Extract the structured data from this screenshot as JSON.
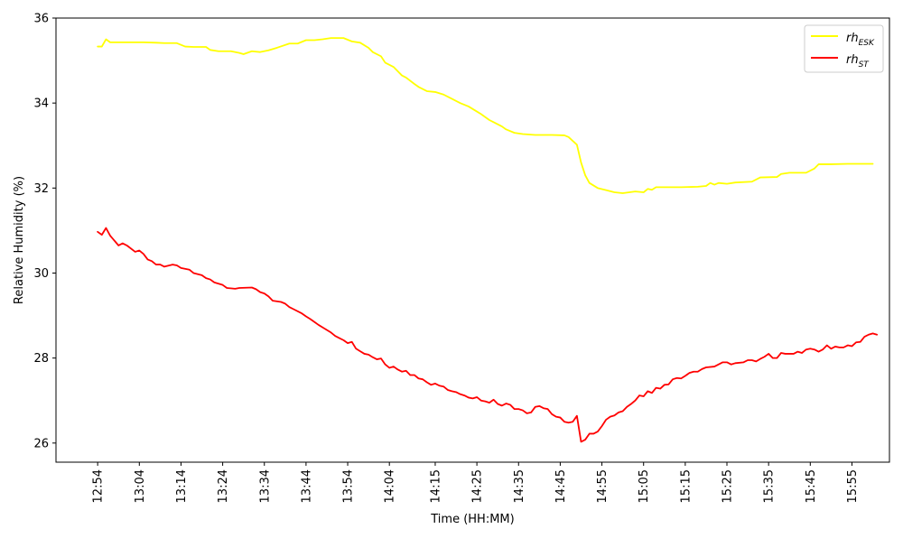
{
  "chart_data": {
    "type": "line",
    "xlabel": "Time (HH:MM)",
    "ylabel": "Relative Humidity (%)",
    "xlim": [
      "12:44",
      "16:04"
    ],
    "ylim": [
      25.55,
      36.0
    ],
    "y_ticks": [
      "26",
      "28",
      "30",
      "32",
      "34",
      "36"
    ],
    "x_ticks": [
      "12:54",
      "13:04",
      "13:14",
      "13:24",
      "13:34",
      "13:44",
      "13:54",
      "14:04",
      "14:15",
      "14:25",
      "14:35",
      "14:45",
      "14:55",
      "15:05",
      "15:15",
      "15:25",
      "15:35",
      "15:45",
      "15:55"
    ],
    "grid": false,
    "legend_position": "top-right",
    "series": [
      {
        "name_main": "rh",
        "name_sub": "ESK",
        "color": "#ffff00",
        "points": [
          [
            "12:54",
            35.33
          ],
          [
            "12:55",
            35.33
          ],
          [
            "12:56",
            35.5
          ],
          [
            "12:57",
            35.43
          ],
          [
            "12:59",
            35.43
          ],
          [
            "13:02",
            35.43
          ],
          [
            "13:05",
            35.43
          ],
          [
            "13:08",
            35.42
          ],
          [
            "13:10",
            35.41
          ],
          [
            "13:13",
            35.41
          ],
          [
            "13:15",
            35.33
          ],
          [
            "13:17",
            35.32
          ],
          [
            "13:20",
            35.32
          ],
          [
            "13:21",
            35.25
          ],
          [
            "13:23",
            35.22
          ],
          [
            "13:26",
            35.22
          ],
          [
            "13:28",
            35.18
          ],
          [
            "13:29",
            35.15
          ],
          [
            "13:31",
            35.22
          ],
          [
            "13:33",
            35.2
          ],
          [
            "13:35",
            35.24
          ],
          [
            "13:37",
            35.3
          ],
          [
            "13:40",
            35.4
          ],
          [
            "13:42",
            35.4
          ],
          [
            "13:44",
            35.48
          ],
          [
            "13:46",
            35.48
          ],
          [
            "13:48",
            35.5
          ],
          [
            "13:50",
            35.53
          ],
          [
            "13:53",
            35.53
          ],
          [
            "13:55",
            35.45
          ],
          [
            "13:57",
            35.42
          ],
          [
            "13:59",
            35.3
          ],
          [
            "14:00",
            35.2
          ],
          [
            "14:02",
            35.1
          ],
          [
            "14:03",
            34.95
          ],
          [
            "14:05",
            34.85
          ],
          [
            "14:07",
            34.65
          ],
          [
            "14:08",
            34.6
          ],
          [
            "14:10",
            34.45
          ],
          [
            "14:11",
            34.38
          ],
          [
            "14:13",
            34.28
          ],
          [
            "14:15",
            34.26
          ],
          [
            "14:17",
            34.2
          ],
          [
            "14:19",
            34.1
          ],
          [
            "14:21",
            34.0
          ],
          [
            "14:23",
            33.92
          ],
          [
            "14:25",
            33.8
          ],
          [
            "14:26",
            33.74
          ],
          [
            "14:28",
            33.6
          ],
          [
            "14:29",
            33.55
          ],
          [
            "14:31",
            33.45
          ],
          [
            "14:32",
            33.38
          ],
          [
            "14:34",
            33.3
          ],
          [
            "14:36",
            33.27
          ],
          [
            "14:39",
            33.25
          ],
          [
            "14:43",
            33.25
          ],
          [
            "14:46",
            33.24
          ],
          [
            "14:47",
            33.2
          ],
          [
            "14:49",
            33.02
          ],
          [
            "14:50",
            32.6
          ],
          [
            "14:51",
            32.3
          ],
          [
            "14:52",
            32.12
          ],
          [
            "14:54",
            32.0
          ],
          [
            "14:56",
            31.95
          ],
          [
            "14:58",
            31.9
          ],
          [
            "15:00",
            31.88
          ],
          [
            "15:03",
            31.92
          ],
          [
            "15:05",
            31.9
          ],
          [
            "15:06",
            31.98
          ],
          [
            "15:07",
            31.96
          ],
          [
            "15:08",
            32.02
          ],
          [
            "15:10",
            32.02
          ],
          [
            "15:14",
            32.02
          ],
          [
            "15:18",
            32.03
          ],
          [
            "15:20",
            32.05
          ],
          [
            "15:21",
            32.12
          ],
          [
            "15:22",
            32.08
          ],
          [
            "15:23",
            32.12
          ],
          [
            "15:25",
            32.1
          ],
          [
            "15:27",
            32.13
          ],
          [
            "15:31",
            32.15
          ],
          [
            "15:33",
            32.25
          ],
          [
            "15:37",
            32.26
          ],
          [
            "15:38",
            32.33
          ],
          [
            "15:40",
            32.36
          ],
          [
            "15:44",
            32.36
          ],
          [
            "15:46",
            32.46
          ],
          [
            "15:47",
            32.56
          ],
          [
            "15:50",
            32.56
          ],
          [
            "15:54",
            32.57
          ],
          [
            "15:59",
            32.57
          ],
          [
            "16:00",
            32.57
          ]
        ]
      },
      {
        "name_main": "rh",
        "name_sub": "ST",
        "color": "#ff0000",
        "points": [
          [
            "12:54",
            30.97
          ],
          [
            "12:55",
            30.9
          ],
          [
            "12:56",
            31.06
          ],
          [
            "12:57",
            30.88
          ],
          [
            "12:59",
            30.65
          ],
          [
            "13:00",
            30.7
          ],
          [
            "13:01",
            30.65
          ],
          [
            "13:03",
            30.5
          ],
          [
            "13:04",
            30.53
          ],
          [
            "13:05",
            30.45
          ],
          [
            "13:06",
            30.32
          ],
          [
            "13:07",
            30.28
          ],
          [
            "13:08",
            30.2
          ],
          [
            "13:09",
            30.2
          ],
          [
            "13:10",
            30.15
          ],
          [
            "13:12",
            30.2
          ],
          [
            "13:13",
            30.18
          ],
          [
            "13:14",
            30.12
          ],
          [
            "13:16",
            30.08
          ],
          [
            "13:17",
            30.0
          ],
          [
            "13:19",
            29.95
          ],
          [
            "13:20",
            29.88
          ],
          [
            "13:21",
            29.85
          ],
          [
            "13:22",
            29.78
          ],
          [
            "13:24",
            29.72
          ],
          [
            "13:25",
            29.65
          ],
          [
            "13:27",
            29.63
          ],
          [
            "13:28",
            29.65
          ],
          [
            "13:31",
            29.66
          ],
          [
            "13:32",
            29.62
          ],
          [
            "13:33",
            29.55
          ],
          [
            "13:34",
            29.52
          ],
          [
            "13:35",
            29.45
          ],
          [
            "13:36",
            29.35
          ],
          [
            "13:38",
            29.32
          ],
          [
            "13:39",
            29.28
          ],
          [
            "13:40",
            29.2
          ],
          [
            "13:41",
            29.15
          ],
          [
            "13:43",
            29.05
          ],
          [
            "13:44",
            28.98
          ],
          [
            "13:45",
            28.92
          ],
          [
            "13:46",
            28.85
          ],
          [
            "13:47",
            28.78
          ],
          [
            "13:48",
            28.72
          ],
          [
            "13:50",
            28.6
          ],
          [
            "13:51",
            28.52
          ],
          [
            "13:52",
            28.47
          ],
          [
            "13:53",
            28.42
          ],
          [
            "13:54",
            28.35
          ],
          [
            "13:55",
            28.38
          ],
          [
            "13:56",
            28.22
          ],
          [
            "13:57",
            28.16
          ],
          [
            "13:58",
            28.1
          ],
          [
            "13:59",
            28.08
          ],
          [
            "14:00",
            28.02
          ],
          [
            "14:01",
            27.97
          ],
          [
            "14:02",
            27.99
          ],
          [
            "14:03",
            27.85
          ],
          [
            "14:04",
            27.77
          ],
          [
            "14:05",
            27.8
          ],
          [
            "14:06",
            27.73
          ],
          [
            "14:07",
            27.68
          ],
          [
            "14:08",
            27.7
          ],
          [
            "14:09",
            27.6
          ],
          [
            "14:10",
            27.6
          ],
          [
            "14:11",
            27.52
          ],
          [
            "14:12",
            27.5
          ],
          [
            "14:13",
            27.43
          ],
          [
            "14:14",
            27.37
          ],
          [
            "14:15",
            27.4
          ],
          [
            "14:16",
            27.35
          ],
          [
            "14:17",
            27.33
          ],
          [
            "14:18",
            27.25
          ],
          [
            "14:19",
            27.22
          ],
          [
            "14:20",
            27.2
          ],
          [
            "14:21",
            27.15
          ],
          [
            "14:22",
            27.12
          ],
          [
            "14:23",
            27.07
          ],
          [
            "14:24",
            27.05
          ],
          [
            "14:25",
            27.08
          ],
          [
            "14:26",
            27.0
          ],
          [
            "14:27",
            26.98
          ],
          [
            "14:28",
            26.95
          ],
          [
            "14:29",
            27.02
          ],
          [
            "14:30",
            26.92
          ],
          [
            "14:31",
            26.88
          ],
          [
            "14:32",
            26.93
          ],
          [
            "14:33",
            26.9
          ],
          [
            "14:34",
            26.8
          ],
          [
            "14:35",
            26.8
          ],
          [
            "14:36",
            26.77
          ],
          [
            "14:37",
            26.7
          ],
          [
            "14:38",
            26.72
          ],
          [
            "14:39",
            26.85
          ],
          [
            "14:40",
            26.87
          ],
          [
            "14:41",
            26.82
          ],
          [
            "14:42",
            26.8
          ],
          [
            "14:43",
            26.68
          ],
          [
            "14:44",
            26.62
          ],
          [
            "14:45",
            26.6
          ],
          [
            "14:46",
            26.5
          ],
          [
            "14:47",
            26.48
          ],
          [
            "14:48",
            26.5
          ],
          [
            "14:49",
            26.64
          ],
          [
            "14:50",
            26.03
          ],
          [
            "14:51",
            26.08
          ],
          [
            "14:52",
            26.22
          ],
          [
            "14:53",
            26.22
          ],
          [
            "14:54",
            26.27
          ],
          [
            "14:55",
            26.4
          ],
          [
            "14:56",
            26.55
          ],
          [
            "14:57",
            26.62
          ],
          [
            "14:58",
            26.65
          ],
          [
            "14:59",
            26.72
          ],
          [
            "15:00",
            26.75
          ],
          [
            "15:01",
            26.85
          ],
          [
            "15:02",
            26.92
          ],
          [
            "15:03",
            27.0
          ],
          [
            "15:04",
            27.12
          ],
          [
            "15:05",
            27.1
          ],
          [
            "15:06",
            27.22
          ],
          [
            "15:07",
            27.18
          ],
          [
            "15:08",
            27.3
          ],
          [
            "15:09",
            27.28
          ],
          [
            "15:10",
            27.37
          ],
          [
            "15:11",
            27.38
          ],
          [
            "15:12",
            27.5
          ],
          [
            "15:13",
            27.53
          ],
          [
            "15:14",
            27.52
          ],
          [
            "15:15",
            27.58
          ],
          [
            "15:16",
            27.65
          ],
          [
            "15:17",
            27.68
          ],
          [
            "15:18",
            27.68
          ],
          [
            "15:19",
            27.74
          ],
          [
            "15:20",
            27.78
          ],
          [
            "15:22",
            27.8
          ],
          [
            "15:23",
            27.85
          ],
          [
            "15:24",
            27.9
          ],
          [
            "15:25",
            27.9
          ],
          [
            "15:26",
            27.85
          ],
          [
            "15:27",
            27.88
          ],
          [
            "15:29",
            27.9
          ],
          [
            "15:30",
            27.95
          ],
          [
            "15:31",
            27.95
          ],
          [
            "15:32",
            27.92
          ],
          [
            "15:33",
            27.98
          ],
          [
            "15:34",
            28.03
          ],
          [
            "15:35",
            28.1
          ],
          [
            "15:36",
            28.0
          ],
          [
            "15:37",
            28.0
          ],
          [
            "15:38",
            28.12
          ],
          [
            "15:39",
            28.1
          ],
          [
            "15:41",
            28.1
          ],
          [
            "15:42",
            28.15
          ],
          [
            "15:43",
            28.12
          ],
          [
            "15:44",
            28.2
          ],
          [
            "15:45",
            28.22
          ],
          [
            "15:46",
            28.2
          ],
          [
            "15:47",
            28.15
          ],
          [
            "15:48",
            28.2
          ],
          [
            "15:49",
            28.3
          ],
          [
            "15:50",
            28.22
          ],
          [
            "15:51",
            28.27
          ],
          [
            "15:52",
            28.25
          ],
          [
            "15:53",
            28.25
          ],
          [
            "15:54",
            28.3
          ],
          [
            "15:55",
            28.28
          ],
          [
            "15:56",
            28.37
          ],
          [
            "15:57",
            28.38
          ],
          [
            "15:58",
            28.5
          ],
          [
            "15:59",
            28.55
          ],
          [
            "16:00",
            28.58
          ],
          [
            "16:01",
            28.55
          ]
        ]
      }
    ]
  }
}
